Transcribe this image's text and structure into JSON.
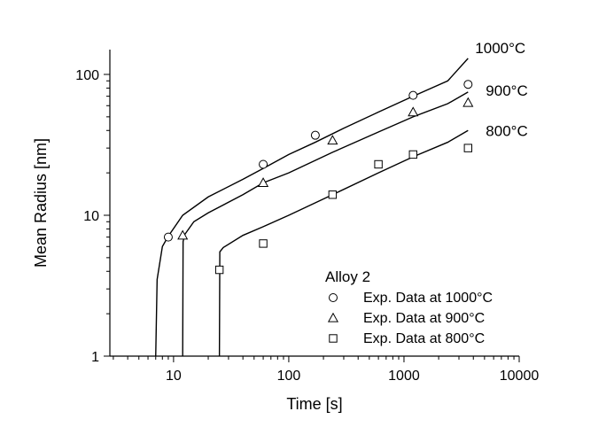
{
  "chart_data": {
    "type": "line",
    "xlabel": "Time [s]",
    "ylabel": "Mean Radius [nm]",
    "x_scale": "log",
    "y_scale": "log",
    "xlim": [
      2.8,
      10000
    ],
    "ylim": [
      1,
      150
    ],
    "x_major_ticks": [
      10,
      100,
      1000,
      10000
    ],
    "x_tick_labels": [
      "10",
      "100",
      "1000",
      "10000"
    ],
    "y_major_ticks": [
      1,
      10,
      100
    ],
    "y_tick_labels": [
      "1",
      "10",
      "100"
    ],
    "grid": false,
    "legend": {
      "title": "Alloy 2",
      "position": "bottom-right",
      "entries": [
        {
          "label": "Exp. Data at 1000°C",
          "marker": "circle"
        },
        {
          "label": "Exp. Data at 900°C",
          "marker": "triangle"
        },
        {
          "label": "Exp. Data at 800°C",
          "marker": "square"
        }
      ]
    },
    "series": [
      {
        "name": "1000°C",
        "curve_label": "1000°C",
        "marker": "circle",
        "points": [
          {
            "x": 9,
            "y": 7.0
          },
          {
            "x": 60,
            "y": 23
          },
          {
            "x": 170,
            "y": 37
          },
          {
            "x": 1200,
            "y": 71
          },
          {
            "x": 3600,
            "y": 85
          }
        ],
        "model": {
          "x": [
            7,
            7.2,
            8,
            9,
            12,
            20,
            40,
            60,
            100,
            170,
            300,
            600,
            1200,
            2400,
            3600
          ],
          "y": [
            1,
            3.5,
            6.0,
            7.1,
            10.0,
            13.5,
            18.0,
            21.5,
            27.0,
            33.0,
            41.5,
            54.0,
            70.0,
            90.0,
            130.0
          ]
        }
      },
      {
        "name": "900°C",
        "curve_label": "900°C",
        "marker": "triangle",
        "points": [
          {
            "x": 12,
            "y": 7.2
          },
          {
            "x": 60,
            "y": 17
          },
          {
            "x": 240,
            "y": 34
          },
          {
            "x": 1200,
            "y": 54
          },
          {
            "x": 3600,
            "y": 63
          }
        ],
        "model": {
          "x": [
            12,
            12.1,
            12.5,
            15,
            20,
            40,
            60,
            100,
            240,
            600,
            1200,
            2400,
            3600
          ],
          "y": [
            1,
            6.5,
            7.3,
            9.0,
            10.4,
            14.0,
            17.0,
            20.0,
            28.0,
            39.0,
            50.0,
            62.0,
            75.0
          ]
        }
      },
      {
        "name": "800°C",
        "curve_label": "800°C",
        "marker": "square",
        "points": [
          {
            "x": 25,
            "y": 4.1
          },
          {
            "x": 60,
            "y": 6.3
          },
          {
            "x": 240,
            "y": 14
          },
          {
            "x": 600,
            "y": 23
          },
          {
            "x": 1200,
            "y": 27
          },
          {
            "x": 3600,
            "y": 30
          }
        ],
        "model": {
          "x": [
            25,
            25.2,
            27,
            40,
            60,
            100,
            240,
            600,
            1200,
            2400,
            3600
          ],
          "y": [
            1,
            5.5,
            5.9,
            7.2,
            8.3,
            10.0,
            14.0,
            20.0,
            26.0,
            33.0,
            40.0
          ]
        }
      }
    ]
  }
}
